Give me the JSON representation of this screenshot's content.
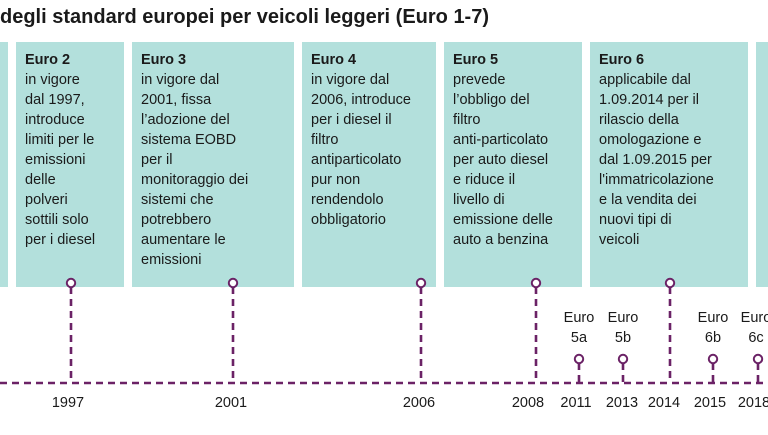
{
  "title": "degli standard europei per veicoli leggeri (Euro 1-7)",
  "colors": {
    "card": "#b3e0dc",
    "timeline": "#6b2266",
    "text": "#1a1a1a"
  },
  "cards": [
    {
      "name": "Euro 2",
      "desc": "in vigore\ndal 1997,\nintroduce\nlimiti per le\nemissioni\ndelle\npolveri\nsottili solo\nper i diesel"
    },
    {
      "name": "Euro 3",
      "desc": "in vigore dal\n2001, fissa\nl’adozione del\nsistema EOBD\nper il\nmonitoraggio dei\nsistemi che\npotrebbero\naumentare le\nemissioni"
    },
    {
      "name": "Euro 4",
      "desc": "in vigore dal\n2006, introduce\nper i diesel il\nfiltro\nantiparticolato\npur non\nrendendolo\nobbligatorio"
    },
    {
      "name": "Euro 5",
      "desc": "prevede\nl’obbligo del\nfiltro\nanti-particolato\nper auto diesel\ne riduce il\nlivello di\nemissione delle\nauto a benzina"
    },
    {
      "name": "Euro 6",
      "desc": "applicabile dal\n1.09.2014 per il\nrilascio della\nomologazione e\ndal 1.09.2015 per\nl'immatricolazione\ne la vendita dei\nnuovi tipi di\nveicoli"
    }
  ],
  "sub_stages": [
    "Euro\n5a",
    "Euro\n5b",
    "Euro\n6b",
    "Euro\n6c"
  ],
  "years": [
    "1997",
    "2001",
    "2006",
    "2008",
    "2011",
    "2013",
    "2014",
    "2015",
    "2018"
  ]
}
